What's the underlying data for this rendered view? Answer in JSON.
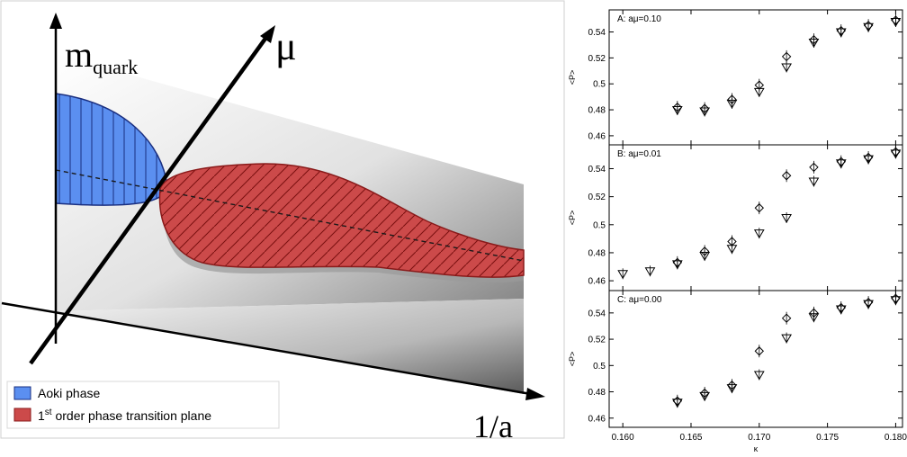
{
  "phase_diagram": {
    "axis_mquark_label": "m",
    "axis_mquark_sub": "quark",
    "axis_mu_label": "μ",
    "axis_inv_a_label": "1/a",
    "legend": {
      "aoki_label": "Aoki phase",
      "first_order_prefix": "1",
      "first_order_sup": "st",
      "first_order_suffix": " order phase transition plane",
      "aoki_color": "#5b8ff0",
      "first_order_color": "#cc4a4a"
    }
  },
  "chart_data": [
    {
      "type": "scatter",
      "title": "A: aμ=0.10",
      "ylabel": "<P>",
      "xlabel": "",
      "xlim": [
        0.159,
        0.1805
      ],
      "ylim": [
        0.453,
        0.557
      ],
      "yticks": [
        0.46,
        0.48,
        0.5,
        0.52,
        0.54
      ],
      "ytick_labels": [
        "0.46",
        "0.48",
        "0.5",
        "0.52",
        "0.54"
      ],
      "series": [
        {
          "marker": "diamond",
          "x": [
            0.164,
            0.166,
            0.168,
            0.17,
            0.172,
            0.174,
            0.176,
            0.178,
            0.18
          ],
          "y": [
            0.482,
            0.481,
            0.488,
            0.499,
            0.521,
            0.534,
            0.541,
            0.545,
            0.549
          ]
        },
        {
          "marker": "triangle-down",
          "x": [
            0.164,
            0.166,
            0.168,
            0.17,
            0.172,
            0.174,
            0.176,
            0.178,
            0.18
          ],
          "y": [
            0.48,
            0.479,
            0.485,
            0.494,
            0.513,
            0.532,
            0.54,
            0.544,
            0.548
          ]
        }
      ]
    },
    {
      "type": "scatter",
      "title": "B: aμ=0.01",
      "ylabel": "<P>",
      "xlabel": "",
      "xlim": [
        0.159,
        0.1805
      ],
      "ylim": [
        0.453,
        0.557
      ],
      "yticks": [
        0.46,
        0.48,
        0.5,
        0.52,
        0.54
      ],
      "ytick_labels": [
        "0.46",
        "0.48",
        "0.5",
        "0.52",
        "0.54"
      ],
      "series": [
        {
          "marker": "diamond",
          "x": [
            0.164,
            0.166,
            0.168,
            0.17,
            0.172,
            0.174,
            0.176,
            0.178,
            0.18
          ],
          "y": [
            0.473,
            0.481,
            0.488,
            0.512,
            0.535,
            0.541,
            0.545,
            0.548,
            0.552
          ]
        },
        {
          "marker": "triangle-down",
          "x": [
            0.16,
            0.162,
            0.164,
            0.166,
            0.168,
            0.17,
            0.172,
            0.174,
            0.176,
            0.178,
            0.18
          ],
          "y": [
            0.465,
            0.467,
            0.472,
            0.478,
            0.483,
            0.494,
            0.505,
            0.531,
            0.544,
            0.547,
            0.551
          ]
        }
      ]
    },
    {
      "type": "scatter",
      "title": "C: aμ=0.00",
      "ylabel": "<P>",
      "xlabel": "κ",
      "xlim": [
        0.159,
        0.1805
      ],
      "ylim": [
        0.453,
        0.557
      ],
      "yticks": [
        0.46,
        0.48,
        0.5,
        0.52,
        0.54
      ],
      "ytick_labels": [
        "0.46",
        "0.48",
        "0.5",
        "0.52",
        "0.54"
      ],
      "xticks": [
        0.16,
        0.165,
        0.17,
        0.175,
        0.18
      ],
      "xtick_labels": [
        "0.160",
        "0.165",
        "0.170",
        "0.175",
        "0.180"
      ],
      "series": [
        {
          "marker": "diamond",
          "x": [
            0.164,
            0.166,
            0.168,
            0.17,
            0.172,
            0.174,
            0.176,
            0.178,
            0.18
          ],
          "y": [
            0.473,
            0.479,
            0.485,
            0.511,
            0.536,
            0.54,
            0.544,
            0.548,
            0.551
          ]
        },
        {
          "marker": "triangle-down",
          "x": [
            0.164,
            0.166,
            0.168,
            0.17,
            0.172,
            0.174,
            0.176,
            0.178,
            0.18
          ],
          "y": [
            0.472,
            0.477,
            0.483,
            0.493,
            0.521,
            0.537,
            0.543,
            0.547,
            0.55
          ]
        }
      ]
    }
  ]
}
